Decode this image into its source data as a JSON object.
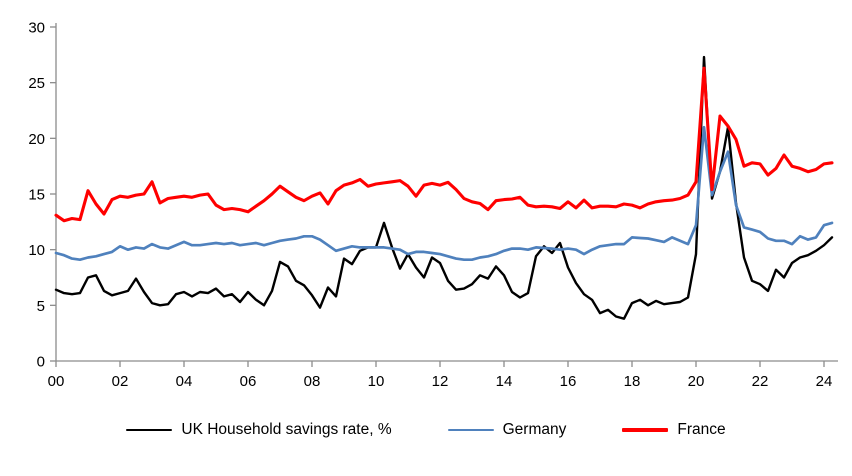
{
  "chart_data": {
    "type": "line",
    "title": "",
    "xlabel": "",
    "ylabel": "",
    "frequency": "quarterly",
    "x_start_year": 2000,
    "x_tick_labels": [
      "00",
      "02",
      "04",
      "06",
      "08",
      "10",
      "12",
      "14",
      "16",
      "18",
      "20",
      "22",
      "24"
    ],
    "y_ticks": [
      0,
      5,
      10,
      15,
      20,
      25,
      30
    ],
    "ylim": [
      0,
      30
    ],
    "grid": false,
    "legend_position": "bottom",
    "axis_color": "#8c8c8c",
    "series": [
      {
        "key": "uk",
        "name": "UK Household savings rate, %",
        "color": "#000000",
        "stroke_width": 2.4,
        "values": [
          6.4,
          6.1,
          6.0,
          6.1,
          7.5,
          7.7,
          6.3,
          5.9,
          6.1,
          6.3,
          7.4,
          6.2,
          5.2,
          5.0,
          5.1,
          6.0,
          6.2,
          5.8,
          6.2,
          6.1,
          6.5,
          5.8,
          6.0,
          5.3,
          6.2,
          5.5,
          5.0,
          6.3,
          8.9,
          8.5,
          7.2,
          6.8,
          5.9,
          4.8,
          6.6,
          5.8,
          9.2,
          8.7,
          9.9,
          10.2,
          10.2,
          12.4,
          10.2,
          8.3,
          9.6,
          8.4,
          7.5,
          9.3,
          8.8,
          7.2,
          6.4,
          6.5,
          6.9,
          7.7,
          7.4,
          8.5,
          7.7,
          6.2,
          5.7,
          6.1,
          9.4,
          10.3,
          9.7,
          10.6,
          8.4,
          7.0,
          6.0,
          5.5,
          4.3,
          4.6,
          4.0,
          3.8,
          5.2,
          5.5,
          5.0,
          5.4,
          5.1,
          5.2,
          5.3,
          5.7,
          9.6,
          27.3,
          14.6,
          17.0,
          21.0,
          14.2,
          9.3,
          7.2,
          6.9,
          6.3,
          8.2,
          7.5,
          8.8,
          9.3,
          9.5,
          9.9,
          10.4,
          11.1
        ]
      },
      {
        "key": "germany",
        "name": "Germany",
        "color": "#4f81bd",
        "stroke_width": 2.7,
        "values": [
          9.7,
          9.5,
          9.2,
          9.1,
          9.3,
          9.4,
          9.6,
          9.8,
          10.3,
          10.0,
          10.2,
          10.1,
          10.5,
          10.2,
          10.1,
          10.4,
          10.7,
          10.4,
          10.4,
          10.5,
          10.6,
          10.5,
          10.6,
          10.4,
          10.5,
          10.6,
          10.4,
          10.6,
          10.8,
          10.9,
          11.0,
          11.2,
          11.2,
          10.9,
          10.4,
          9.9,
          10.1,
          10.3,
          10.2,
          10.2,
          10.2,
          10.2,
          10.1,
          10.0,
          9.6,
          9.8,
          9.8,
          9.7,
          9.6,
          9.4,
          9.2,
          9.1,
          9.1,
          9.3,
          9.4,
          9.6,
          9.9,
          10.1,
          10.1,
          10.0,
          10.2,
          10.15,
          10.1,
          10.0,
          10.1,
          10.0,
          9.6,
          10.0,
          10.3,
          10.4,
          10.5,
          10.5,
          11.1,
          11.05,
          11.0,
          10.85,
          10.7,
          11.1,
          10.8,
          10.5,
          12.2,
          21.0,
          14.9,
          17.0,
          18.8,
          14.0,
          12.0,
          11.8,
          11.6,
          11.0,
          10.8,
          10.8,
          10.5,
          11.2,
          10.9,
          11.1,
          12.2,
          12.4
        ]
      },
      {
        "key": "france",
        "name": "France",
        "color": "#ff0000",
        "stroke_width": 3.1,
        "values": [
          13.1,
          12.6,
          12.8,
          12.7,
          15.3,
          14.1,
          13.2,
          14.5,
          14.8,
          14.7,
          14.9,
          15.0,
          16.1,
          14.2,
          14.6,
          14.7,
          14.8,
          14.7,
          14.9,
          15.0,
          14.0,
          13.6,
          13.7,
          13.6,
          13.4,
          13.9,
          14.4,
          15.0,
          15.7,
          15.2,
          14.7,
          14.4,
          14.8,
          15.1,
          14.1,
          15.3,
          15.8,
          16.0,
          16.3,
          15.7,
          15.9,
          16.0,
          16.1,
          16.2,
          15.7,
          14.8,
          15.8,
          15.95,
          15.8,
          16.05,
          15.4,
          14.6,
          14.3,
          14.15,
          13.6,
          14.4,
          14.5,
          14.55,
          14.7,
          14.0,
          13.85,
          13.9,
          13.85,
          13.7,
          14.3,
          13.75,
          14.45,
          13.75,
          13.9,
          13.9,
          13.85,
          14.1,
          14.0,
          13.75,
          14.1,
          14.3,
          14.4,
          14.45,
          14.6,
          14.9,
          16.1,
          26.3,
          15.4,
          22.0,
          21.1,
          19.9,
          17.5,
          17.8,
          17.7,
          16.7,
          17.3,
          18.5,
          17.5,
          17.3,
          17.0,
          17.2,
          17.7,
          17.8
        ]
      }
    ]
  },
  "legend": {
    "uk_label": "UK Household savings rate, %",
    "germany_label": "Germany",
    "france_label": "France"
  }
}
